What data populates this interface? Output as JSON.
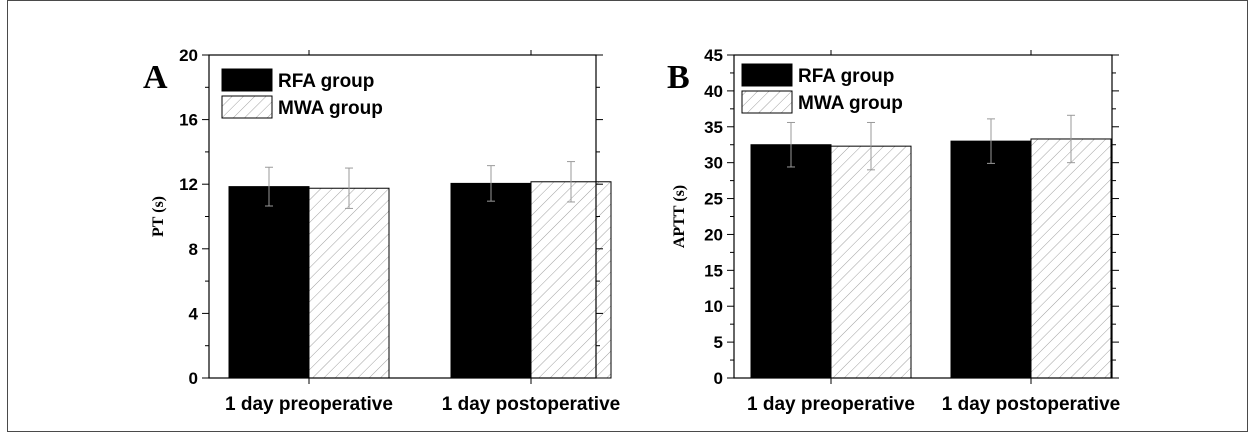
{
  "chart_data": [
    {
      "type": "bar",
      "panel_label": "A",
      "categories": [
        "1 day preoperative",
        "1 day postoperative"
      ],
      "series": [
        {
          "name": "RFA group",
          "values": [
            11.85,
            12.05
          ],
          "errors": [
            1.2,
            1.1
          ],
          "fill": "#000000",
          "pattern": "solid"
        },
        {
          "name": "MWA group",
          "values": [
            11.75,
            12.15
          ],
          "errors": [
            1.25,
            1.25
          ],
          "fill": "#ffffff",
          "pattern": "hatch"
        }
      ],
      "ylabel": "PT (s)",
      "xlabel": "",
      "ylim": [
        0,
        20
      ],
      "yticks": [
        "0",
        "4",
        "8",
        "12",
        "16",
        "20"
      ],
      "yminor_step": 2,
      "grid": false,
      "legend": "top-left",
      "title": ""
    },
    {
      "type": "bar",
      "panel_label": "B",
      "categories": [
        "1 day preoperative",
        "1 day postoperative"
      ],
      "series": [
        {
          "name": "RFA group",
          "values": [
            32.5,
            33.0
          ],
          "errors": [
            3.1,
            3.1
          ],
          "fill": "#000000",
          "pattern": "solid"
        },
        {
          "name": "MWA group",
          "values": [
            32.3,
            33.3
          ],
          "errors": [
            3.3,
            3.3
          ],
          "fill": "#ffffff",
          "pattern": "hatch"
        }
      ],
      "ylabel": "APTT (s)",
      "xlabel": "",
      "ylim": [
        0,
        45
      ],
      "yticks": [
        "0",
        "5",
        "10",
        "15",
        "20",
        "25",
        "30",
        "35",
        "40",
        "45"
      ],
      "yminor_step": 2.5,
      "grid": false,
      "legend": "top-left",
      "title": ""
    }
  ]
}
